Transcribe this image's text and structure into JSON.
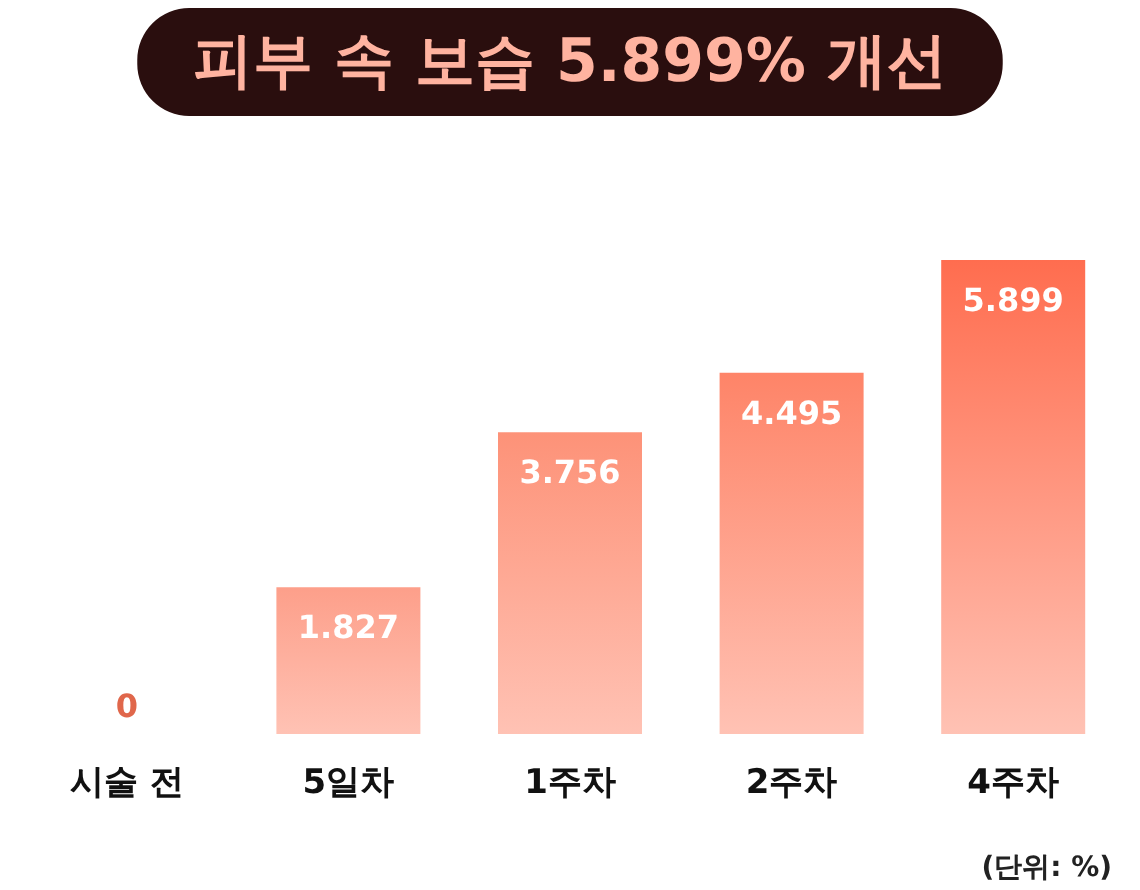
{
  "chart_data": {
    "type": "bar",
    "title": "피부 속 보습 5.899% 개선",
    "categories": [
      "시술 전",
      "5일차",
      "1주차",
      "2주차",
      "4주차"
    ],
    "values": [
      0,
      1.827,
      3.756,
      4.495,
      5.899
    ],
    "colors": [
      "#fdaa98",
      "#fd9f8a",
      "#fd9278",
      "#fe8468",
      "#ff6d4f"
    ],
    "data_labels": true,
    "annotations": [
      "(단위: %)"
    ]
  }
}
